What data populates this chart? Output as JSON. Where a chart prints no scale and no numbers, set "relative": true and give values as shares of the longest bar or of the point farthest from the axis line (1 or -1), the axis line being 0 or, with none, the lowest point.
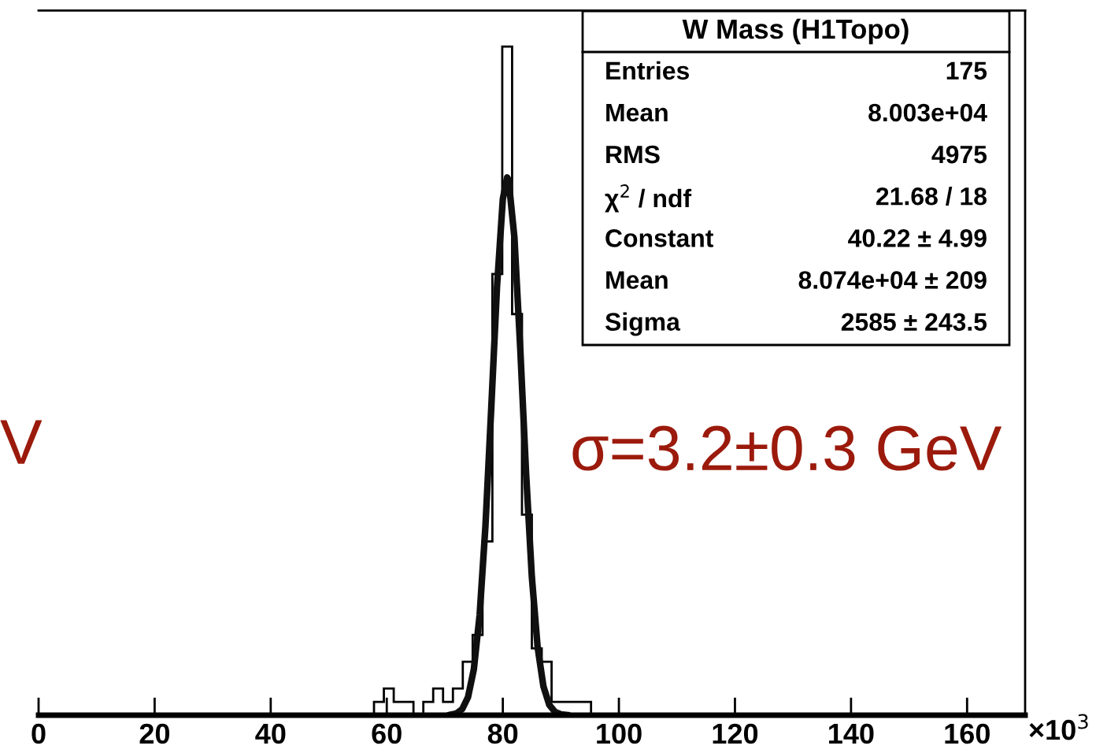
{
  "chart_data": {
    "type": "histogram",
    "title": "W Mass (H1Topo)",
    "relative": true,
    "bins": [
      57.8,
      59.5,
      61.2,
      62.9,
      64.6,
      66.3,
      68.0,
      69.7,
      71.4,
      73.1,
      74.8,
      76.5,
      78.2,
      79.9,
      81.6,
      83.3,
      85.0,
      86.7,
      88.4,
      90.1,
      91.8,
      93.5,
      95.2
    ],
    "color": "#000000",
    "values": [
      0.02,
      0.04,
      0.02,
      0.02,
      0,
      0.02,
      0.04,
      0.02,
      0.04,
      0.08,
      0.12,
      0.26,
      0.66,
      1,
      0.6,
      0.3,
      0.1,
      0.08,
      0.02,
      0.02,
      0.02,
      0.02
    ],
    "series": [
      {
        "type": "line",
        "color": "#101010",
        "x": [
          71,
          72,
          73,
          74,
          75,
          76,
          77,
          78,
          79,
          80,
          80.74,
          81,
          82,
          83,
          84,
          85,
          86,
          87,
          88,
          89,
          90,
          91
        ],
        "values": [
          0.0007,
          0.0026,
          0.0091,
          0.0269,
          0.0684,
          0.1498,
          0.2824,
          0.4587,
          0.6414,
          0.7721,
          0.8044,
          0.8003,
          0.7143,
          0.5489,
          0.3632,
          0.2069,
          0.1015,
          0.0429,
          0.0156,
          0.0049,
          0.0013,
          0.0003
        ]
      }
    ],
    "xlim": [
      0,
      170
    ],
    "xticks": [
      0,
      20,
      40,
      60,
      80,
      100,
      120,
      140,
      160
    ],
    "annotations": [
      "Entries",
      "175",
      "Mean",
      "8.003e+04",
      "RMS",
      "4975",
      "χ$^{2}$ / ndf",
      "21.68 / 18",
      "Constant",
      "40.22 ± 4.99",
      "Mean",
      "8.074e+04 ± 209",
      "Sigma",
      "2585 ± 243.5",
      "×10$^{3}$",
      "σ=3.2±0.3 GeV",
      "V"
    ],
    "legend": false,
    "grid": false,
    "marker": "none"
  }
}
